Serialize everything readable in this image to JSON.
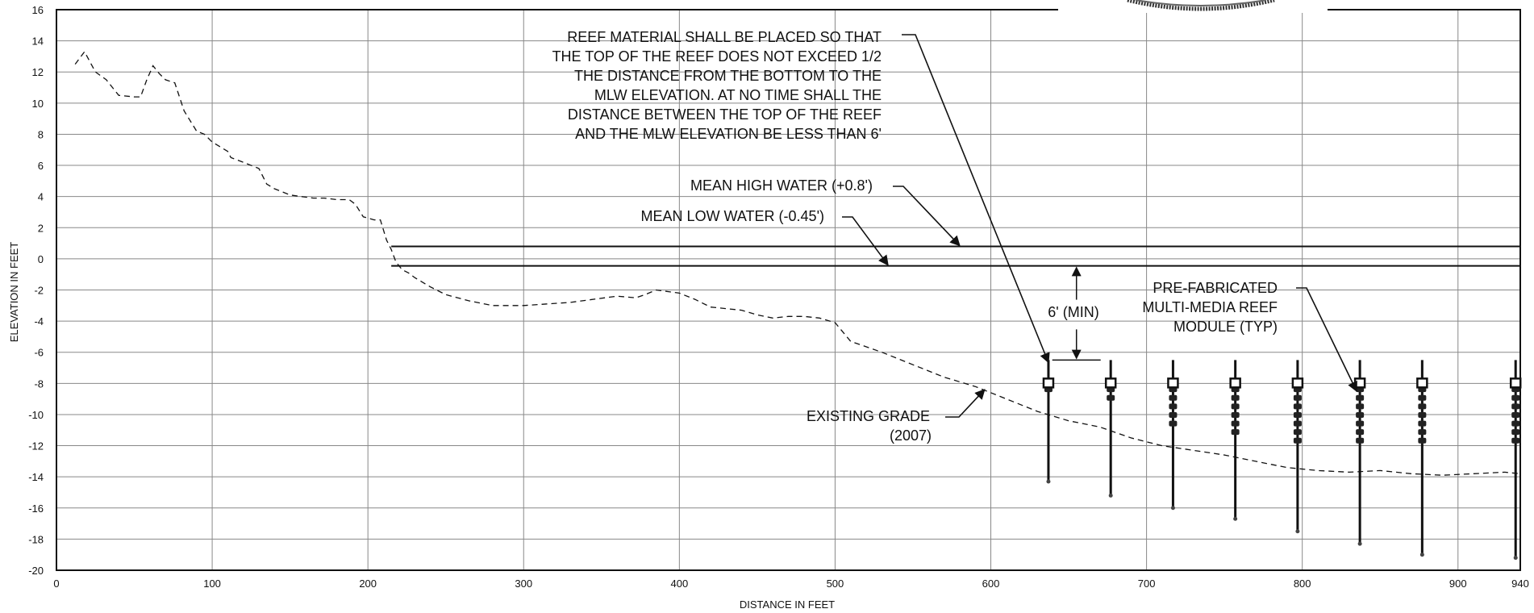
{
  "chart_data": {
    "type": "line",
    "title": "",
    "xlabel": "DISTANCE IN FEET",
    "ylabel": "ELEVATION IN FEET",
    "xlim": [
      0,
      940
    ],
    "ylim": [
      -20,
      16
    ],
    "grid": true,
    "x_ticks": [
      {
        "value": 0,
        "label": "0"
      },
      {
        "value": 100,
        "label": "100"
      },
      {
        "value": 200,
        "label": "200"
      },
      {
        "value": 300,
        "label": "300"
      },
      {
        "value": 400,
        "label": "400"
      },
      {
        "value": 500,
        "label": "500"
      },
      {
        "value": 600,
        "label": "600"
      },
      {
        "value": 700,
        "label": "700"
      },
      {
        "value": 800,
        "label": "800"
      },
      {
        "value": 900,
        "label": "900"
      },
      {
        "value": 940,
        "label": "940"
      }
    ],
    "y_ticks": [
      {
        "value": 16,
        "label": "16"
      },
      {
        "value": 14,
        "label": "14"
      },
      {
        "value": 12,
        "label": "12"
      },
      {
        "value": 10,
        "label": "10"
      },
      {
        "value": 8,
        "label": "8"
      },
      {
        "value": 6,
        "label": "6"
      },
      {
        "value": 4,
        "label": "4"
      },
      {
        "value": 2,
        "label": "2"
      },
      {
        "value": 0,
        "label": "0"
      },
      {
        "value": -2,
        "label": "-2"
      },
      {
        "value": -4,
        "label": "-4"
      },
      {
        "value": -6,
        "label": "-6"
      },
      {
        "value": -8,
        "label": "-8"
      },
      {
        "value": -10,
        "label": "-10"
      },
      {
        "value": -12,
        "label": "-12"
      },
      {
        "value": -14,
        "label": "-14"
      },
      {
        "value": -16,
        "label": "-16"
      },
      {
        "value": -18,
        "label": "-18"
      },
      {
        "value": -20,
        "label": "-20"
      }
    ],
    "existing_grade": {
      "style": "dashed",
      "x": [
        12,
        18,
        25,
        32,
        40,
        50,
        54,
        58,
        62,
        66,
        70,
        76,
        82,
        90,
        95,
        100,
        110,
        112,
        120,
        130,
        135,
        140,
        150,
        157,
        165,
        172,
        180,
        188,
        192,
        197,
        204,
        208,
        212,
        215,
        218,
        222,
        226,
        230,
        240,
        250,
        265,
        280,
        300,
        330,
        360,
        372,
        378,
        385,
        400,
        410,
        420,
        440,
        450,
        460,
        470,
        480,
        490,
        500,
        510,
        530,
        550,
        570,
        590,
        610,
        630,
        650,
        670,
        690,
        710,
        730,
        750,
        770,
        790,
        810,
        830,
        850,
        870,
        890,
        910,
        930,
        940
      ],
      "y": [
        12.5,
        13.3,
        12.0,
        11.5,
        10.5,
        10.4,
        10.4,
        11.5,
        12.4,
        11.9,
        11.5,
        11.3,
        9.5,
        8.2,
        8.0,
        7.5,
        6.9,
        6.5,
        6.2,
        5.8,
        4.8,
        4.5,
        4.1,
        4.0,
        3.9,
        3.9,
        3.8,
        3.8,
        3.5,
        2.7,
        2.5,
        2.5,
        1.2,
        0.6,
        -0.2,
        -0.7,
        -0.9,
        -1.2,
        -1.8,
        -2.3,
        -2.7,
        -3.0,
        -3.0,
        -2.8,
        -2.4,
        -2.5,
        -2.3,
        -2.0,
        -2.2,
        -2.6,
        -3.1,
        -3.3,
        -3.6,
        -3.8,
        -3.7,
        -3.7,
        -3.8,
        -4.1,
        -5.3,
        -6.0,
        -6.8,
        -7.6,
        -8.2,
        -9.0,
        -9.8,
        -10.4,
        -10.8,
        -11.5,
        -12.0,
        -12.3,
        -12.6,
        -13.0,
        -13.4,
        -13.6,
        -13.7,
        -13.6,
        -13.8,
        -13.9,
        -13.8,
        -13.7,
        -13.8
      ]
    },
    "mean_high_water": {
      "y": 0.8,
      "x_start": 215,
      "x_end": 940
    },
    "mean_low_water": {
      "y": -0.45,
      "x_start": 215,
      "x_end": 940
    },
    "reef_modules": [
      {
        "x": 637,
        "top": -6.5,
        "bottom": -14.3,
        "marker": -8.0,
        "cluster_bottom": -8.8
      },
      {
        "x": 677,
        "top": -6.5,
        "bottom": -15.2,
        "marker": -8.0,
        "cluster_bottom": -9.4
      },
      {
        "x": 717,
        "top": -6.5,
        "bottom": -16.0,
        "marker": -8.0,
        "cluster_bottom": -10.8
      },
      {
        "x": 757,
        "top": -6.5,
        "bottom": -16.7,
        "marker": -8.0,
        "cluster_bottom": -11.4
      },
      {
        "x": 797,
        "top": -6.5,
        "bottom": -17.5,
        "marker": -8.0,
        "cluster_bottom": -12.0
      },
      {
        "x": 837,
        "top": -6.5,
        "bottom": -18.3,
        "marker": -8.0,
        "cluster_bottom": -12.0
      },
      {
        "x": 877,
        "top": -6.5,
        "bottom": -19.0,
        "marker": -8.0,
        "cluster_bottom": -12.0
      },
      {
        "x": 937,
        "top": -6.5,
        "bottom": -19.2,
        "marker": -8.0,
        "cluster_bottom": -12.0
      }
    ],
    "dimension_6ft_min": {
      "x": 655,
      "from": -0.45,
      "to": -6.5
    },
    "annotations": {
      "reef_material": [
        "REEF MATERIAL SHALL BE PLACED SO THAT",
        "THE TOP OF THE REEF DOES NOT EXCEED 1/2",
        "THE DISTANCE FROM THE BOTTOM TO THE",
        "MLW ELEVATION. AT NO TIME SHALL THE",
        "DISTANCE BETWEEN THE TOP OF THE REEF",
        "AND THE MLW ELEVATION BE LESS THAN 6'"
      ],
      "mhw": "MEAN HIGH WATER (+0.8')",
      "mlw": "MEAN LOW WATER (-0.45')",
      "six_min": "6' (MIN)",
      "reef_module": [
        "PRE-FABRICATED",
        "MULTI-MEDIA REEF",
        "MODULE (TYP)"
      ],
      "existing_grade": [
        "EXISTING GRADE",
        "(2007)"
      ]
    }
  }
}
